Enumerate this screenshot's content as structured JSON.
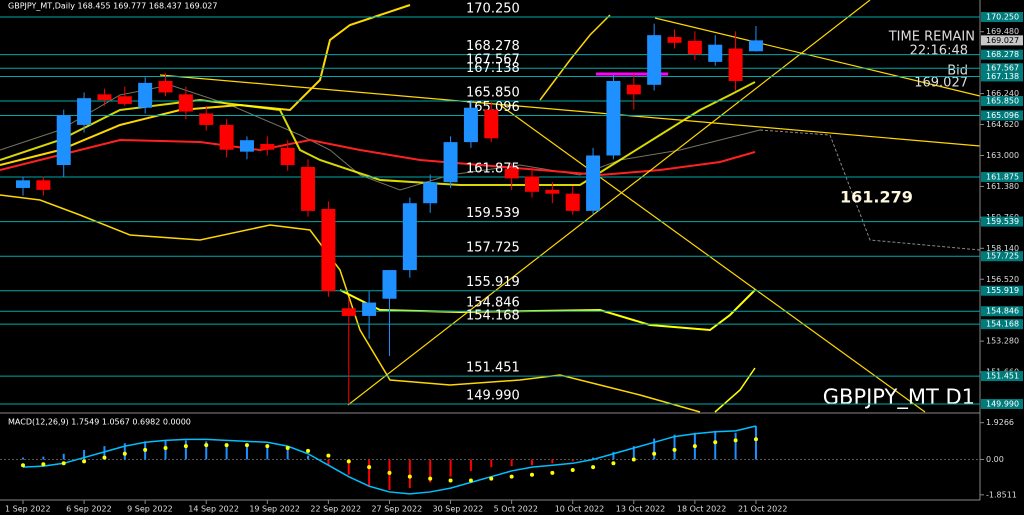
{
  "chart_data": [
    {
      "type": "candlestick",
      "title": "GBPJPY_MT,Daily  168.455 169.777 168.437 169.027",
      "watermark": "GBPJPY_MT D1",
      "annotation": "161.279",
      "info": {
        "time_remain_label": "TIME REMAIN",
        "time": "22:16:48",
        "bid_label": "Bid"
      },
      "bid": {
        "value": 169.027,
        "label": "169.027"
      },
      "categories": [
        "1 Sep 2022",
        null,
        null,
        "6 Sep 2022",
        null,
        null,
        "9 Sep 2022",
        null,
        null,
        "14 Sep 2022",
        null,
        null,
        "19 Sep 2022",
        null,
        null,
        "22 Sep 2022",
        null,
        null,
        "27 Sep 2022",
        null,
        null,
        "30 Sep 2022",
        null,
        null,
        "5 Oct 2022",
        null,
        null,
        "10 Oct 2022",
        null,
        null,
        "13 Oct 2022",
        null,
        null,
        "18 Oct 2022",
        null,
        null,
        "21 Oct 2022"
      ],
      "open": [
        161.3,
        161.7,
        162.5,
        164.6,
        166.2,
        166.1,
        165.5,
        166.9,
        166.2,
        165.2,
        164.6,
        163.2,
        163.6,
        163.4,
        162.4,
        160.2,
        155.0,
        154.6,
        155.5,
        157.0,
        160.5,
        161.6,
        163.7,
        165.4,
        162.3,
        161.9,
        161.2,
        161.0,
        160.1,
        163.0,
        166.7,
        166.7,
        169.2,
        169.0,
        167.9,
        168.6,
        168.455
      ],
      "high": [
        161.9,
        161.9,
        165.4,
        166.3,
        166.5,
        166.6,
        167.1,
        167.3,
        166.6,
        165.6,
        164.9,
        164.0,
        164.0,
        163.8,
        162.8,
        160.6,
        155.5,
        155.9,
        157.0,
        160.8,
        162.0,
        164.0,
        165.9,
        165.8,
        162.6,
        162.4,
        161.6,
        161.4,
        163.4,
        167.2,
        167.3,
        169.9,
        169.6,
        169.5,
        169.3,
        169.5,
        169.777
      ],
      "low": [
        160.9,
        160.9,
        161.9,
        164.2,
        165.6,
        165.6,
        165.2,
        166.1,
        164.9,
        164.3,
        162.9,
        162.8,
        163.0,
        162.2,
        159.8,
        155.6,
        150.0,
        153.4,
        152.5,
        156.6,
        160.0,
        161.3,
        163.4,
        163.7,
        161.2,
        160.8,
        160.5,
        159.9,
        159.9,
        162.8,
        165.4,
        166.4,
        168.6,
        168.0,
        167.7,
        166.4,
        168.437
      ],
      "close": [
        161.7,
        161.2,
        165.1,
        166.0,
        165.9,
        165.7,
        166.8,
        166.3,
        165.3,
        164.6,
        163.3,
        163.8,
        163.3,
        162.5,
        160.1,
        155.9,
        154.6,
        155.3,
        157.0,
        160.5,
        161.6,
        163.7,
        165.5,
        163.9,
        161.8,
        161.1,
        161.0,
        160.1,
        163.0,
        166.9,
        166.2,
        169.3,
        168.9,
        168.3,
        168.8,
        166.9,
        169.027
      ],
      "up_color": "#1e90ff",
      "down_color": "#ff0000",
      "ylim": [
        149.57,
        171.14
      ],
      "yticks": [
        {
          "value": 169.48,
          "label": "169.480"
        },
        {
          "value": 166.24,
          "label": "166.240"
        },
        {
          "value": 164.62,
          "label": "164.620"
        },
        {
          "value": 163,
          "label": "163.000"
        },
        {
          "value": 161.38,
          "label": "161.380"
        },
        {
          "value": 159.76,
          "label": "159.760"
        },
        {
          "value": 158.14,
          "label": "158.140"
        },
        {
          "value": 156.52,
          "label": "156.520"
        },
        {
          "value": 153.28,
          "label": "153.280"
        },
        {
          "value": 151.66,
          "label": "151.660"
        }
      ],
      "levels": [
        {
          "value": 170.25,
          "label": "170.250"
        },
        {
          "value": 168.278,
          "label": "168.278"
        },
        {
          "value": 167.567,
          "label": "167.567"
        },
        {
          "value": 167.138,
          "label": "167.138"
        },
        {
          "value": 165.85,
          "label": "165.850"
        },
        {
          "value": 165.096,
          "label": "165.096"
        },
        {
          "value": 161.875,
          "label": "161.875"
        },
        {
          "value": 159.539,
          "label": "159.539"
        },
        {
          "value": 157.725,
          "label": "157.725"
        },
        {
          "value": 155.919,
          "label": "155.919"
        },
        {
          "value": 154.846,
          "label": "154.846"
        },
        {
          "value": 154.168,
          "label": "154.168"
        },
        {
          "value": 151.451,
          "label": "151.451"
        },
        {
          "value": 149.99,
          "label": "149.990"
        }
      ],
      "level_color": "#00a8a8"
    },
    {
      "type": "macd",
      "title": "MACD(12,26,9) 1.7549 1.0567 0.6982 0.0000",
      "ylim": [
        -2.07,
        2.33
      ],
      "yticks": [
        1.9266,
        {
          "value": 0,
          "label": "0.00"
        },
        -1.8511
      ],
      "histogram": [
        0.1,
        0.15,
        0.3,
        0.5,
        0.7,
        0.85,
        0.95,
        1.0,
        1.0,
        0.95,
        0.85,
        0.8,
        0.7,
        0.5,
        0.2,
        -0.3,
        -0.8,
        -1.4,
        -1.6,
        -1.5,
        -1.2,
        -0.9,
        -0.6,
        -0.4,
        -0.35,
        -0.3,
        -0.2,
        -0.1,
        0.1,
        0.4,
        0.7,
        1.1,
        1.3,
        1.4,
        1.5,
        1.4,
        1.75
      ],
      "main": [
        -0.4,
        -0.35,
        -0.2,
        0.1,
        0.4,
        0.7,
        0.9,
        1.0,
        1.05,
        1.05,
        1.0,
        0.95,
        0.9,
        0.7,
        0.3,
        -0.3,
        -0.9,
        -1.4,
        -1.7,
        -1.8,
        -1.7,
        -1.5,
        -1.2,
        -0.9,
        -0.6,
        -0.4,
        -0.3,
        -0.2,
        0,
        0.3,
        0.6,
        0.9,
        1.2,
        1.35,
        1.45,
        1.5,
        1.7549
      ],
      "signal": [
        -0.3,
        -0.25,
        -0.2,
        -0.1,
        0.1,
        0.3,
        0.5,
        0.6,
        0.7,
        0.75,
        0.75,
        0.75,
        0.7,
        0.6,
        0.45,
        0.2,
        -0.1,
        -0.4,
        -0.7,
        -0.9,
        -1.0,
        -1.1,
        -1.1,
        -1.0,
        -0.9,
        -0.8,
        -0.7,
        -0.55,
        -0.4,
        -0.2,
        0.0,
        0.3,
        0.5,
        0.7,
        0.9,
        1.0,
        1.0567
      ],
      "main_color": "#00bfff",
      "signal_color": "#ffff00",
      "up_color": "#1e90ff",
      "down_color": "#ff0000"
    }
  ]
}
